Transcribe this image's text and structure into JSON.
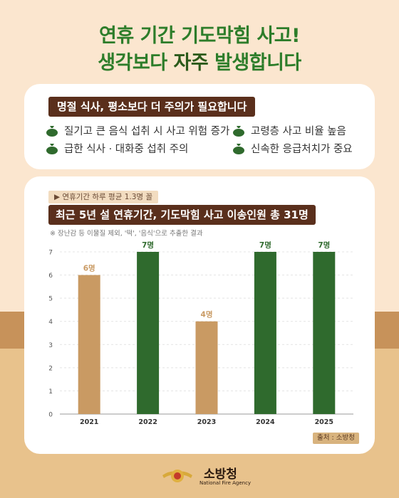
{
  "headline": {
    "line1": "연휴 기간 기도막힘 사고!",
    "line2_a": "생각보다 ",
    "line2_b": "자주",
    "line2_c": " 발생합니다"
  },
  "card1": {
    "title": "명절 식사, 평소보다 더 주의가 필요합니다",
    "points": [
      "질기고 큰 음식 섭취 시 사고 위험 증가",
      "고령층 사고 비율 높음",
      "급한 식사 · 대화중 섭취 주의",
      "신속한 응급처치가 중요"
    ]
  },
  "card2": {
    "sub_tag": "▶ 연휴기간 하루 평균 1.3명 꼴",
    "title": "최근 5년 설 연휴기간, 기도막힘 사고 이송인원 총 31명",
    "note": "※ 장난감 등 이물질 제외, '떡', '음식'으로 추출한 결과",
    "source": "출처 : 소방청"
  },
  "colors": {
    "tan": "#c99a63",
    "green": "#2f6a2d",
    "brown": "#5a2f1c",
    "headline_green": "#2d7d2a"
  },
  "chart_data": {
    "type": "bar",
    "categories": [
      "2021",
      "2022",
      "2023",
      "2024",
      "2025"
    ],
    "values": [
      6,
      7,
      4,
      7,
      7
    ],
    "data_labels": [
      "6명",
      "7명",
      "4명",
      "7명",
      "7명"
    ],
    "bar_colors": [
      "#c99a63",
      "#2f6a2d",
      "#c99a63",
      "#2f6a2d",
      "#2f6a2d"
    ],
    "ylim": [
      0,
      7
    ],
    "yticks": [
      "0",
      "1",
      "2",
      "3",
      "4",
      "5",
      "6",
      "7"
    ],
    "grid": true,
    "title": "최근 5년 설 연휴기간, 기도막힘 사고 이송인원 총 31명"
  },
  "logo": {
    "name": "소방청",
    "sub": "National Fire Agency"
  }
}
